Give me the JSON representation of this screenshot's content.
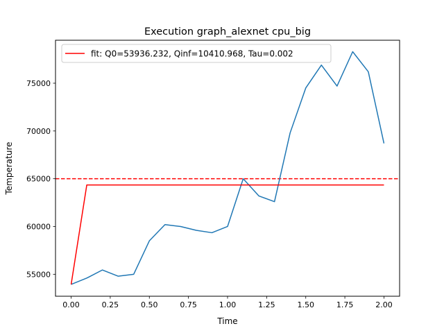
{
  "chart_data": {
    "type": "line",
    "title": "Execution graph_alexnet cpu_big",
    "xlabel": "Time",
    "ylabel": "Temperature",
    "xlim": [
      -0.1,
      2.1
    ],
    "ylim": [
      52700,
      79500
    ],
    "x_ticks": [
      0.0,
      0.25,
      0.5,
      0.75,
      1.0,
      1.25,
      1.5,
      1.75,
      2.0
    ],
    "x_tick_labels": [
      "0.00",
      "0.25",
      "0.50",
      "0.75",
      "1.00",
      "1.25",
      "1.50",
      "1.75",
      "2.00"
    ],
    "y_ticks": [
      55000,
      60000,
      65000,
      70000,
      75000
    ],
    "y_tick_labels": [
      "55000",
      "60000",
      "65000",
      "70000",
      "75000"
    ],
    "grid": false,
    "legend_position": "top-left",
    "series": [
      {
        "name": "",
        "color": "#1f77b4",
        "x": [
          0.0,
          0.1,
          0.2,
          0.3,
          0.4,
          0.5,
          0.6,
          0.7,
          0.8,
          0.9,
          1.0,
          1.1,
          1.2,
          1.3,
          1.4,
          1.5,
          1.6,
          1.7,
          1.8,
          1.9,
          2.0
        ],
        "y": [
          53936,
          54600,
          55450,
          54800,
          55000,
          58500,
          60200,
          60000,
          59600,
          59350,
          60000,
          65000,
          63200,
          62600,
          69800,
          74500,
          76900,
          74700,
          78300,
          76200,
          68700
        ]
      },
      {
        "name": "fit: Q0=53936.232, Qinf=10410.968, Tau=0.002",
        "color": "#ff0000",
        "x": [
          0.0,
          0.1,
          0.2,
          0.3,
          0.4,
          0.5,
          0.6,
          0.7,
          0.8,
          0.9,
          1.0,
          1.1,
          1.2,
          1.3,
          1.4,
          1.5,
          1.6,
          1.7,
          1.8,
          1.9,
          2.0
        ],
        "y": [
          53936,
          64347,
          64347,
          64347,
          64347,
          64347,
          64347,
          64347,
          64347,
          64347,
          64347,
          64347,
          64347,
          64347,
          64347,
          64347,
          64347,
          64347,
          64347,
          64347,
          64347
        ]
      }
    ],
    "reference_lines": [
      {
        "orientation": "horizontal",
        "y": 65000,
        "color": "#ff0000",
        "style": "dashed"
      }
    ]
  }
}
